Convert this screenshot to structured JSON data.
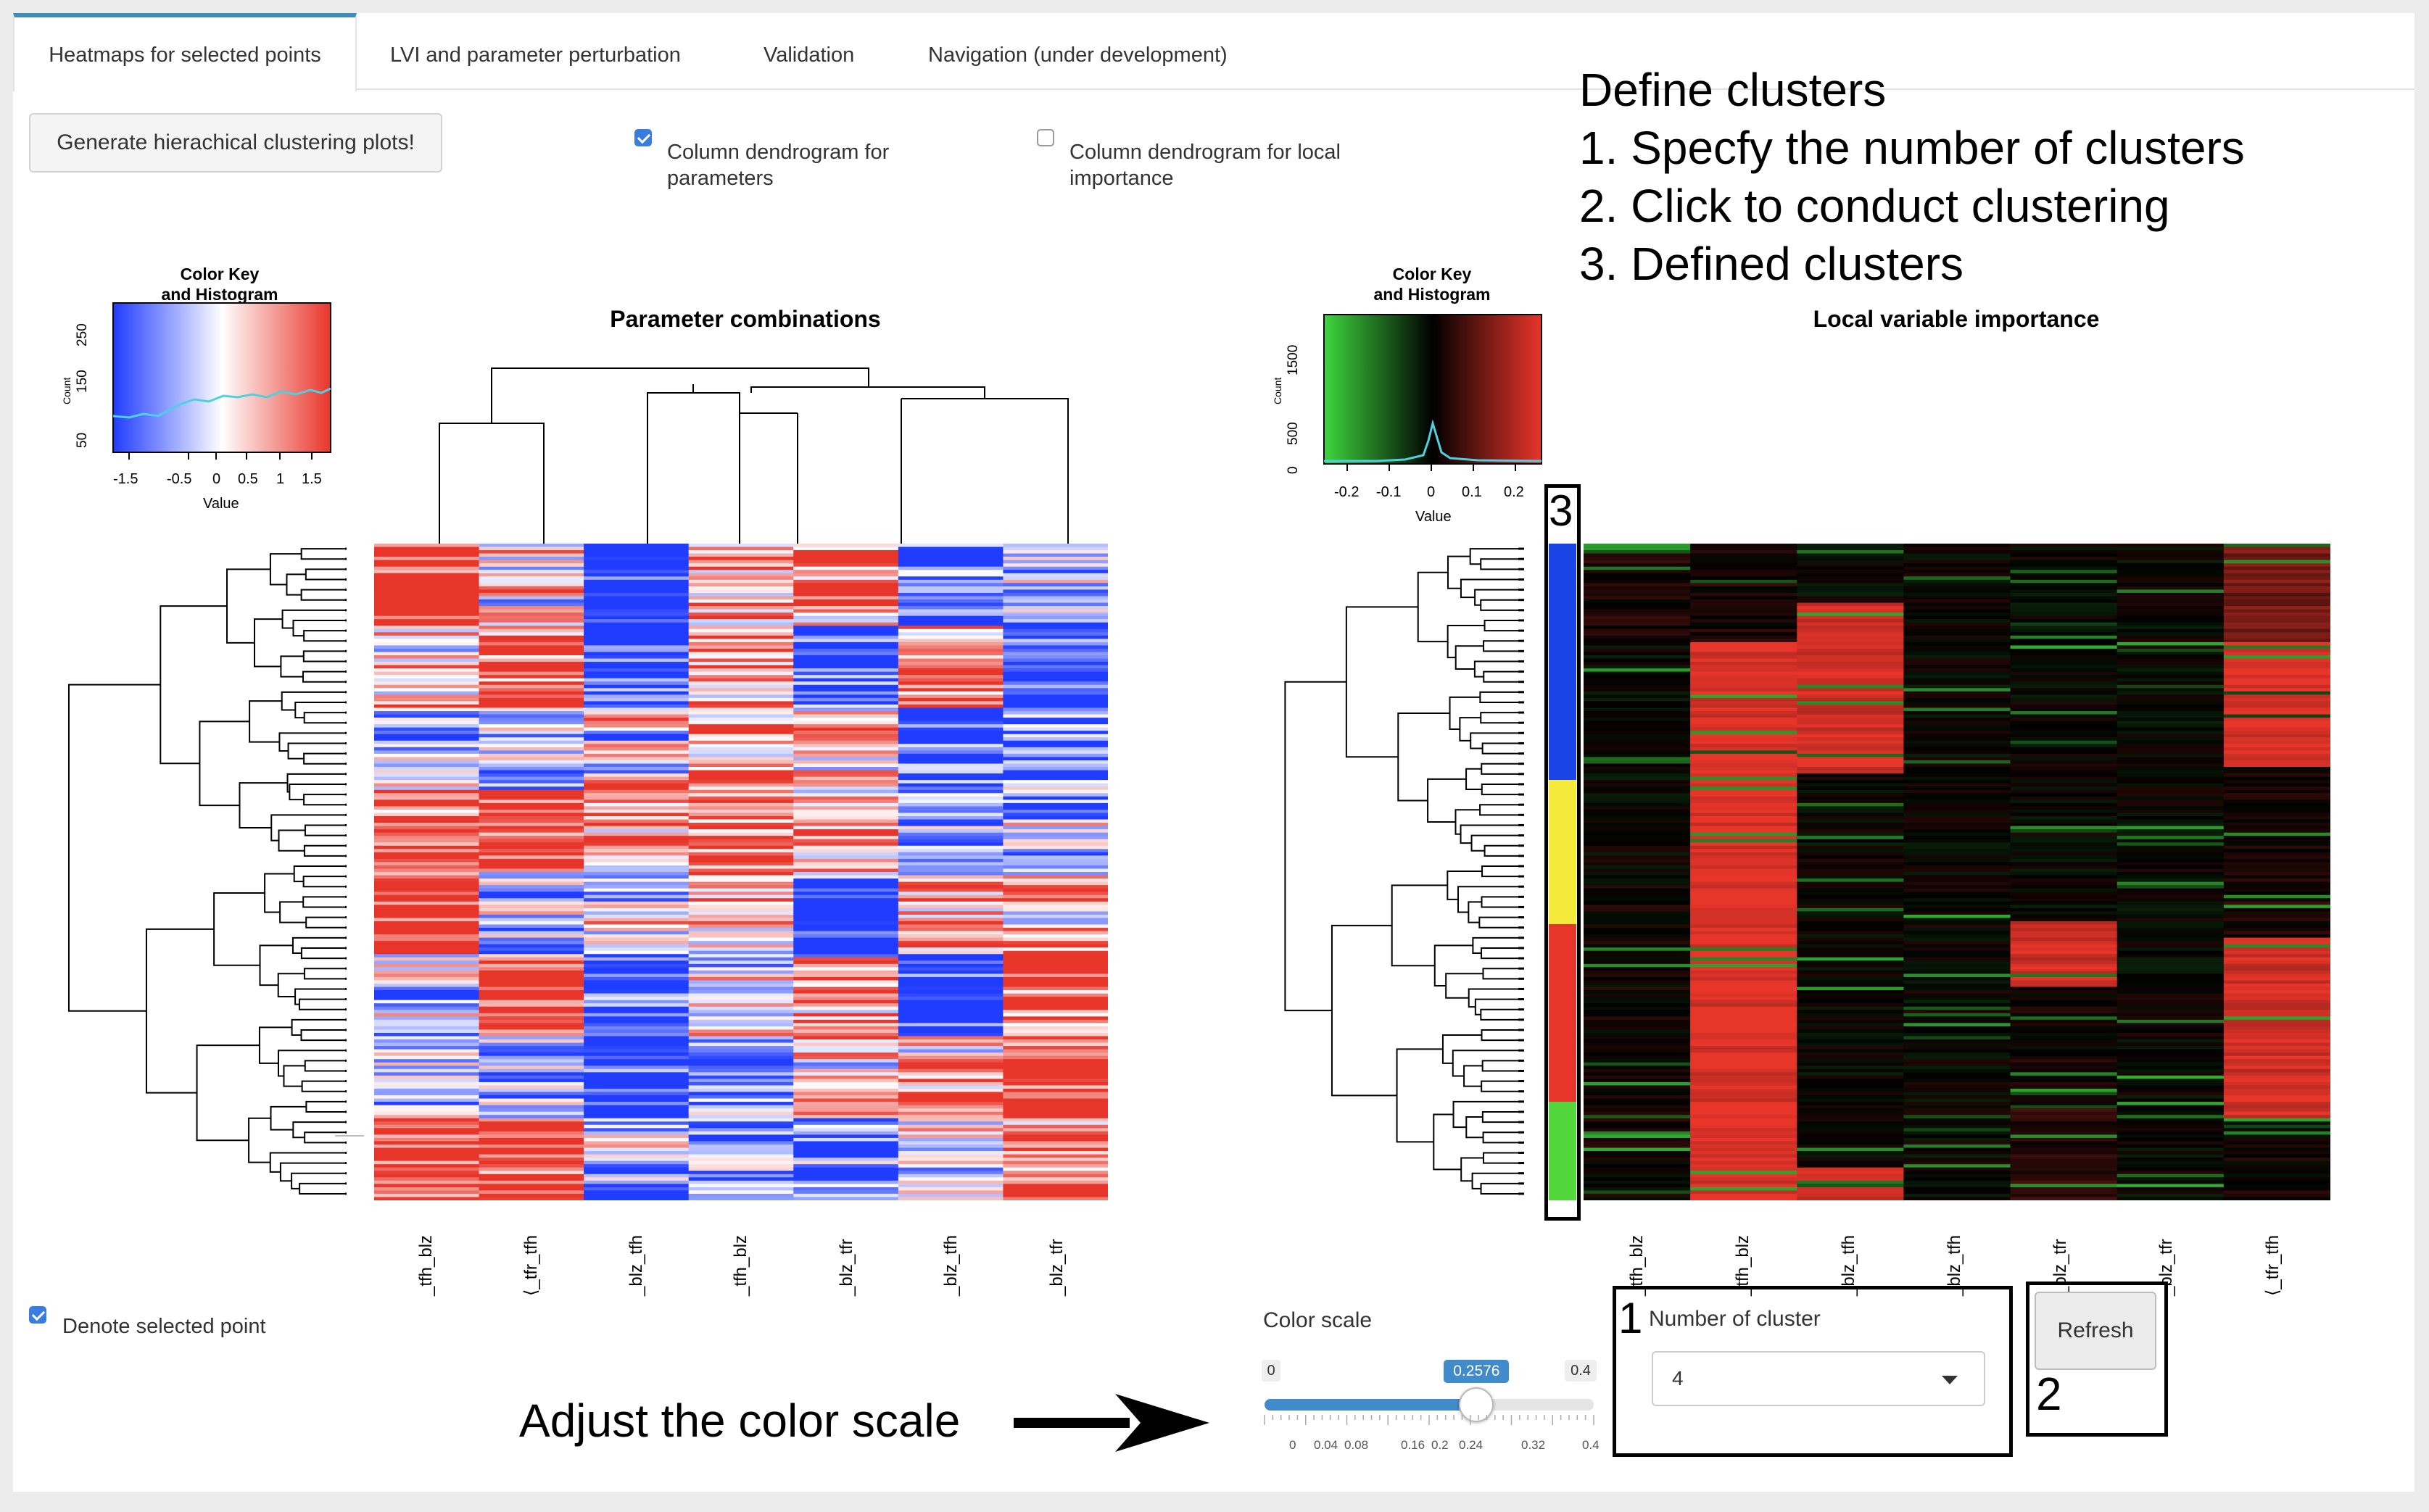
{
  "tabs": [
    {
      "label": "Heatmaps for selected points",
      "active": true
    },
    {
      "label": "LVI and parameter perturbation",
      "active": false
    },
    {
      "label": "Validation",
      "active": false
    },
    {
      "label": "Navigation (under development)",
      "active": false
    }
  ],
  "generate_button_label": "Generate hierachical clustering plots!",
  "checkbox_params": {
    "label": "Column dendrogram for parameters",
    "checked": true
  },
  "checkbox_lvi": {
    "label": "Column dendrogram for local importance",
    "checked": false
  },
  "instructions": {
    "title": "Define clusters",
    "steps": [
      "1. Specfy the number of clusters",
      "2. Click to conduct clustering",
      "3. Defined clusters"
    ]
  },
  "left_plot": {
    "title": "Parameter combinations",
    "color_key": {
      "title_line1": "Color Key",
      "title_line2": "and Histogram",
      "xlabel": "Value",
      "ylabel": "Count",
      "xticks": [
        "-1.5",
        "-0.5",
        "0",
        "0.5",
        "1",
        "1.5"
      ],
      "yticks": [
        "50",
        "150",
        "250"
      ],
      "colors": [
        "#1f3cff",
        "#ffffff",
        "#e8352a"
      ]
    },
    "columns": [
      "_tfh_blz",
      "⟨_tfr_tfh",
      "_blz_tfh",
      "_tfh_blz",
      "_blz_tfr",
      "_blz_tfh",
      "_blz_tfr"
    ]
  },
  "right_plot": {
    "title": "Local variable importance",
    "color_key": {
      "title_line1": "Color Key",
      "title_line2": "and Histogram",
      "xlabel": "Value",
      "ylabel": "Count",
      "xticks": [
        "-0.2",
        "-0.1",
        "0",
        "0.1",
        "0.2"
      ],
      "yticks": [
        "0",
        "500",
        "1500"
      ],
      "colors": [
        "#3ed63e",
        "#000000",
        "#e8352a"
      ]
    },
    "columns": [
      "_tfh_blz",
      "_tfh_blz",
      "_blz_tfh",
      "_blz_tfh",
      "_blz_tfr",
      "_blz_tfr",
      "⟨_tfr_tfh"
    ],
    "clusters": [
      {
        "color": "#1a44e6",
        "fraction": 0.36
      },
      {
        "color": "#f5ea3c",
        "fraction": 0.22
      },
      {
        "color": "#e8352a",
        "fraction": 0.27
      },
      {
        "color": "#53d63c",
        "fraction": 0.15
      }
    ]
  },
  "marker_labels": {
    "one": "1",
    "two": "2",
    "three": "3"
  },
  "denote_checkbox": {
    "label": "Denote selected point",
    "checked": true
  },
  "color_scale": {
    "label": "Color scale",
    "min_label": "0",
    "max_label": "0.4",
    "value_label": "0.2576",
    "value": 0.2576,
    "min": 0,
    "max": 0.4,
    "ticks": [
      "0",
      "0.04",
      "0.08",
      "0.16",
      "0.2",
      "0.24",
      "0.32",
      "0.4"
    ]
  },
  "adjust_annotation": "Adjust the color scale",
  "cluster_select": {
    "label": "Number of cluster",
    "value": "4"
  },
  "refresh_button_label": "Refresh"
}
